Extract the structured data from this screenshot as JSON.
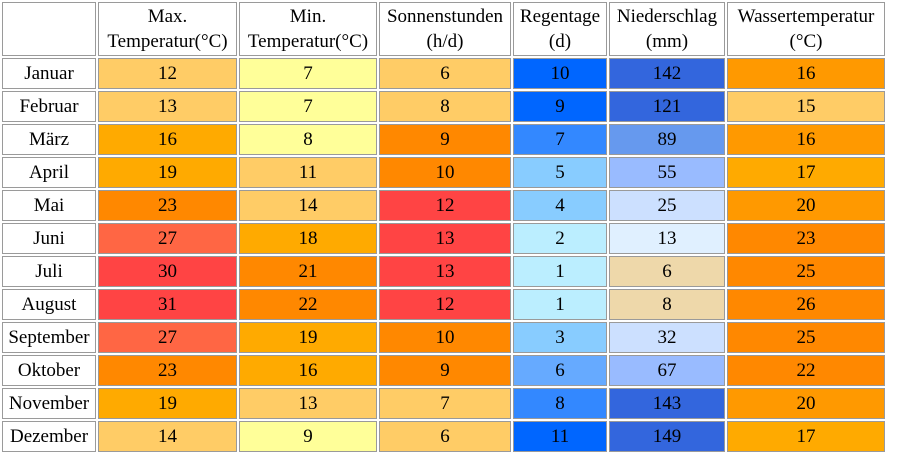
{
  "headers": [
    [
      "Max.",
      "Temperatur(°C)"
    ],
    [
      "Min.",
      "Temperatur(°C)"
    ],
    [
      "Sonnenstunden",
      "(h/d)"
    ],
    [
      "Regentage",
      "(d)"
    ],
    [
      "Niederschlag",
      "(mm)"
    ],
    [
      "Wassertemperatur",
      "(°C)"
    ]
  ],
  "rows": [
    {
      "month": "Januar",
      "values": [
        12,
        7,
        6,
        10,
        142,
        16
      ],
      "colors": [
        "#ffcc66",
        "#ffff99",
        "#ffcc66",
        "#0066ff",
        "#3366dd",
        "#ff9900"
      ]
    },
    {
      "month": "Februar",
      "values": [
        13,
        7,
        8,
        9,
        121,
        15
      ],
      "colors": [
        "#ffcc66",
        "#ffff99",
        "#ffcc66",
        "#0066ff",
        "#3366dd",
        "#ffcc66"
      ]
    },
    {
      "month": "März",
      "values": [
        16,
        8,
        9,
        7,
        89,
        16
      ],
      "colors": [
        "#ffaa00",
        "#ffff99",
        "#ff8800",
        "#3388ff",
        "#6699ee",
        "#ff9900"
      ]
    },
    {
      "month": "April",
      "values": [
        19,
        11,
        10,
        5,
        55,
        17
      ],
      "colors": [
        "#ffaa00",
        "#ffcc66",
        "#ff8800",
        "#88ccff",
        "#99bbff",
        "#ffaa00"
      ]
    },
    {
      "month": "Mai",
      "values": [
        23,
        14,
        12,
        4,
        25,
        20
      ],
      "colors": [
        "#ff8800",
        "#ffcc66",
        "#ff4444",
        "#88ccff",
        "#cce0ff",
        "#ff9900"
      ]
    },
    {
      "month": "Juni",
      "values": [
        27,
        18,
        13,
        2,
        13,
        23
      ],
      "colors": [
        "#ff6644",
        "#ffaa00",
        "#ff4444",
        "#bbeeff",
        "#e0f0ff",
        "#ff8800"
      ]
    },
    {
      "month": "Juli",
      "values": [
        30,
        21,
        13,
        1,
        6,
        25
      ],
      "colors": [
        "#ff4444",
        "#ff8800",
        "#ff4444",
        "#bbeeff",
        "#eed8aa",
        "#ff8800"
      ]
    },
    {
      "month": "August",
      "values": [
        31,
        22,
        12,
        1,
        8,
        26
      ],
      "colors": [
        "#ff4444",
        "#ff8800",
        "#ff4444",
        "#bbeeff",
        "#eed8aa",
        "#ff8800"
      ]
    },
    {
      "month": "September",
      "values": [
        27,
        19,
        10,
        3,
        32,
        25
      ],
      "colors": [
        "#ff6644",
        "#ffaa00",
        "#ff8800",
        "#88ccff",
        "#cce0ff",
        "#ff8800"
      ]
    },
    {
      "month": "Oktober",
      "values": [
        23,
        16,
        9,
        6,
        67,
        22
      ],
      "colors": [
        "#ff8800",
        "#ffaa00",
        "#ff8800",
        "#66aaff",
        "#99bbff",
        "#ff8800"
      ]
    },
    {
      "month": "November",
      "values": [
        19,
        13,
        7,
        8,
        143,
        20
      ],
      "colors": [
        "#ffaa00",
        "#ffcc66",
        "#ffcc66",
        "#3388ff",
        "#3366dd",
        "#ff9900"
      ]
    },
    {
      "month": "Dezember",
      "values": [
        14,
        9,
        6,
        11,
        149,
        17
      ],
      "colors": [
        "#ffcc66",
        "#ffff99",
        "#ffcc66",
        "#0066ff",
        "#3366dd",
        "#ffaa00"
      ]
    }
  ],
  "chart_data": {
    "type": "table",
    "columns": [
      "Max. Temperatur(°C)",
      "Min. Temperatur(°C)",
      "Sonnenstunden (h/d)",
      "Regentage (d)",
      "Niederschlag (mm)",
      "Wassertemperatur (°C)"
    ],
    "categories": [
      "Januar",
      "Februar",
      "März",
      "April",
      "Mai",
      "Juni",
      "Juli",
      "August",
      "September",
      "Oktober",
      "November",
      "Dezember"
    ],
    "series": [
      {
        "name": "Max. Temperatur(°C)",
        "values": [
          12,
          13,
          16,
          19,
          23,
          27,
          30,
          31,
          27,
          23,
          19,
          14
        ]
      },
      {
        "name": "Min. Temperatur(°C)",
        "values": [
          7,
          7,
          8,
          11,
          14,
          18,
          21,
          22,
          19,
          16,
          13,
          9
        ]
      },
      {
        "name": "Sonnenstunden (h/d)",
        "values": [
          6,
          8,
          9,
          10,
          12,
          13,
          13,
          12,
          10,
          9,
          7,
          6
        ]
      },
      {
        "name": "Regentage (d)",
        "values": [
          10,
          9,
          7,
          5,
          4,
          2,
          1,
          1,
          3,
          6,
          8,
          11
        ]
      },
      {
        "name": "Niederschlag (mm)",
        "values": [
          142,
          121,
          89,
          55,
          25,
          13,
          6,
          8,
          32,
          67,
          143,
          149
        ]
      },
      {
        "name": "Wassertemperatur (°C)",
        "values": [
          16,
          15,
          16,
          17,
          20,
          23,
          25,
          26,
          25,
          22,
          20,
          17
        ]
      }
    ]
  }
}
